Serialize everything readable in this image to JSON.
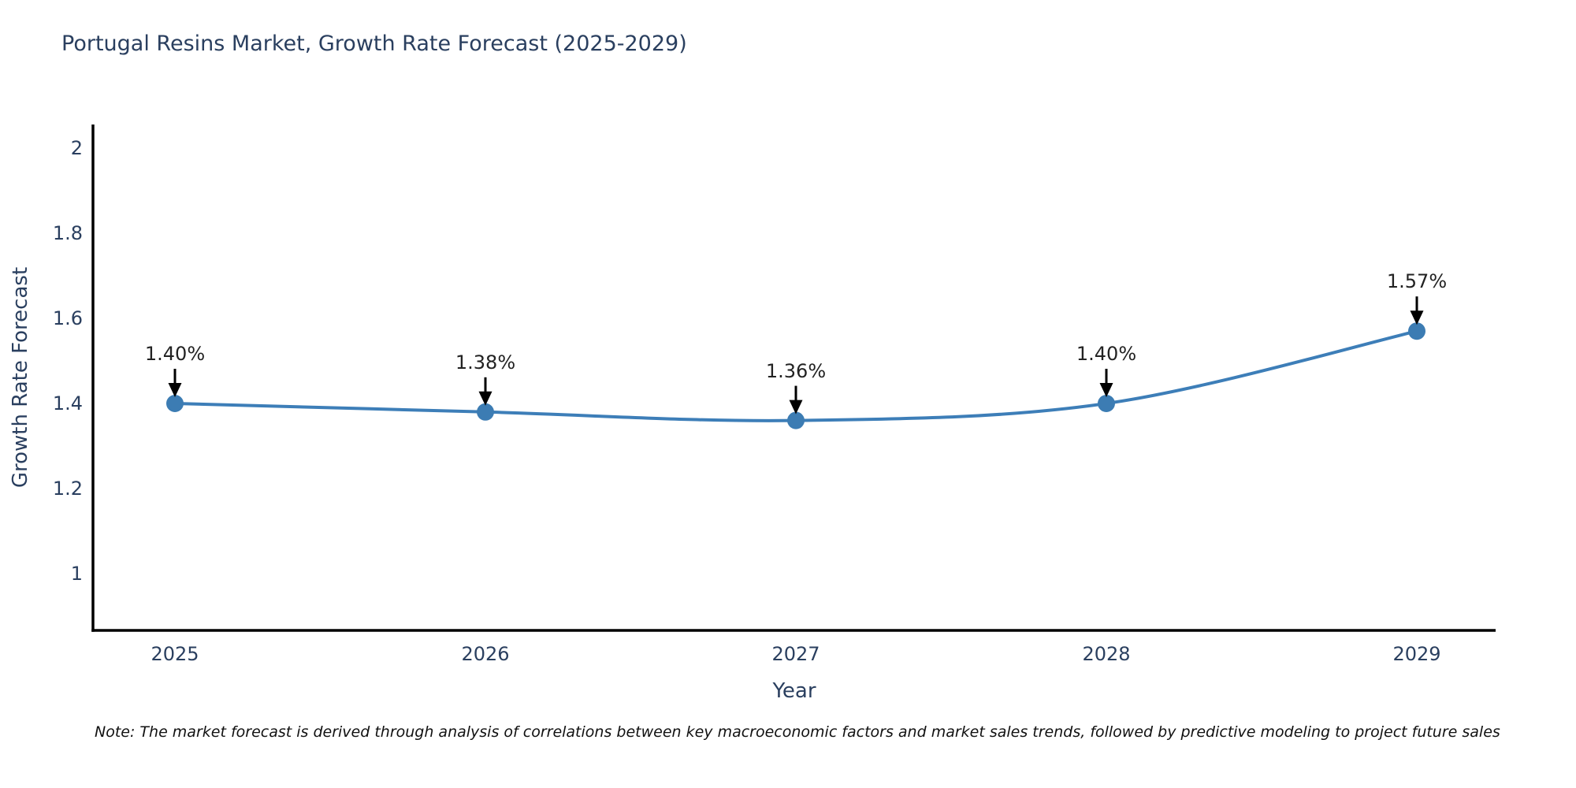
{
  "title": "Portugal Resins Market, Growth Rate Forecast (2025-2029)",
  "note": "Note: The market forecast is derived through analysis of correlations between key macroeconomic factors and market sales trends, followed by predictive modeling to project future sales",
  "chart_data": {
    "type": "line",
    "title": "Portugal Resins Market, Growth Rate Forecast (2025-2029)",
    "xlabel": "Year",
    "ylabel": "Growth Rate Forecast",
    "x": [
      2025,
      2026,
      2027,
      2028,
      2029
    ],
    "values": [
      1.4,
      1.38,
      1.36,
      1.4,
      1.57
    ],
    "point_labels": [
      "1.40%",
      "1.38%",
      "1.36%",
      "1.40%",
      "1.57%"
    ],
    "x_tick_labels": [
      "2025",
      "2026",
      "2027",
      "2028",
      "2029"
    ],
    "y_ticks": [
      1,
      1.2,
      1.4,
      1.6,
      1.8,
      2
    ],
    "y_tick_labels": [
      "1",
      "1.2",
      "1.4",
      "1.6",
      "1.8",
      "2"
    ],
    "ylim": [
      0.87,
      2.06
    ],
    "line_shape": "spline",
    "grid": false,
    "legend": "none",
    "colors": {
      "line": "#3d7eb8",
      "marker": "#3c7cb3",
      "axis": "#000000",
      "tick_text": "#2a3f5f",
      "annotation_text": "#222222",
      "arrow": "#000000"
    }
  }
}
